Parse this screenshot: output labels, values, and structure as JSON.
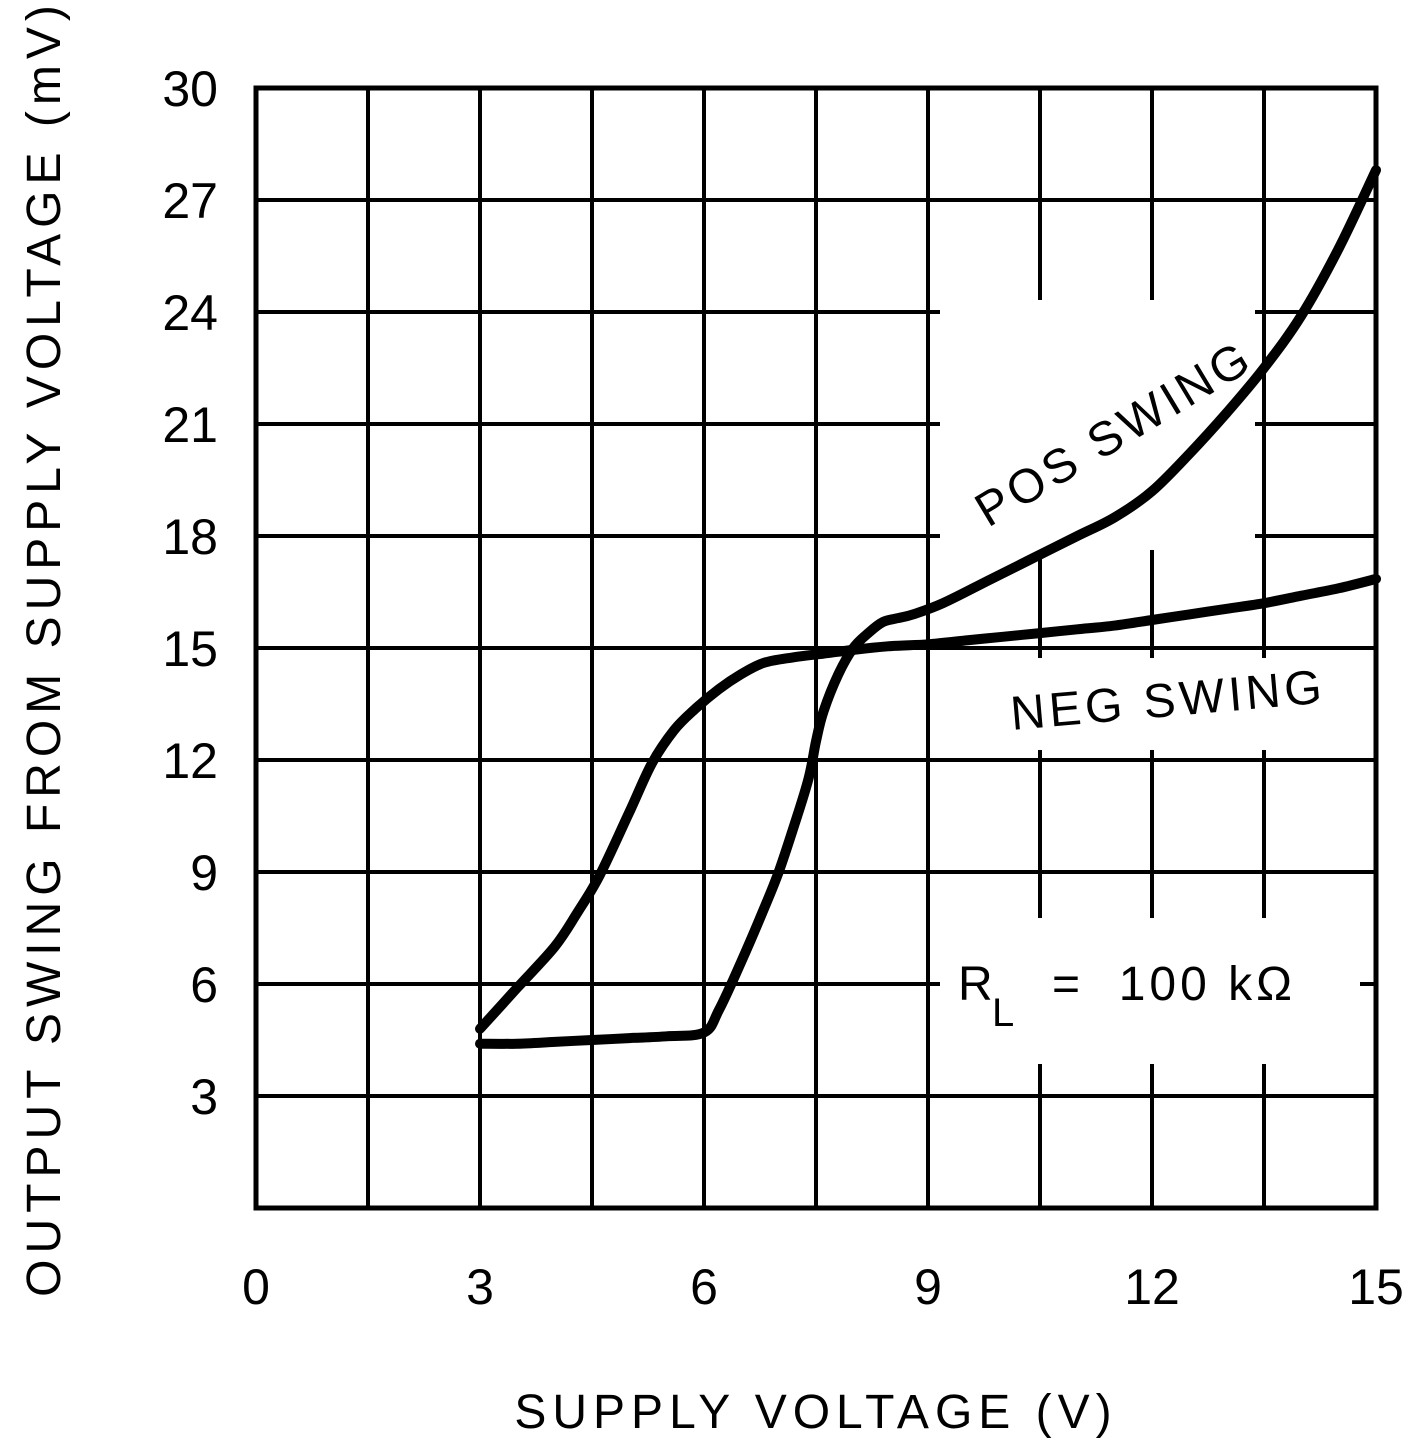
{
  "chart_data": {
    "type": "line",
    "title": "",
    "xlabel": "SUPPLY VOLTAGE (V)",
    "ylabel": "OUTPUT SWING FROM SUPPLY VOLTAGE (mV)",
    "xlim": [
      0,
      15
    ],
    "ylim": [
      0,
      30
    ],
    "x_ticks": [
      "0",
      "3",
      "6",
      "9",
      "12",
      "15"
    ],
    "y_ticks": [
      "3",
      "6",
      "9",
      "12",
      "15",
      "18",
      "21",
      "24",
      "27",
      "30"
    ],
    "grid": true,
    "series": [
      {
        "name": "POS SWING",
        "x": [
          3.0,
          3.5,
          4.0,
          4.5,
          5.0,
          5.5,
          6.0,
          6.2,
          6.5,
          6.8,
          7.0,
          7.2,
          7.4,
          7.5,
          7.6,
          7.8,
          8.0,
          8.2,
          8.4,
          8.6,
          8.8,
          9.2,
          9.8,
          10.4,
          11.0,
          11.5,
          12.0,
          12.5,
          13.0,
          13.5,
          14.0,
          14.5,
          15.0
        ],
        "y": [
          4.4,
          4.4,
          4.45,
          4.5,
          4.55,
          4.6,
          4.7,
          5.3,
          6.6,
          8.0,
          9.0,
          10.2,
          11.5,
          12.5,
          13.3,
          14.3,
          15.0,
          15.4,
          15.7,
          15.8,
          15.9,
          16.2,
          16.8,
          17.4,
          18.0,
          18.5,
          19.2,
          20.2,
          21.3,
          22.5,
          23.9,
          25.7,
          27.8
        ]
      },
      {
        "name": "NEG SWING",
        "x": [
          3.0,
          3.5,
          4.0,
          4.3,
          4.6,
          5.0,
          5.3,
          5.6,
          5.9,
          6.2,
          6.5,
          6.8,
          7.2,
          7.6,
          8.0,
          8.5,
          9.0,
          9.5,
          10.0,
          10.5,
          11.0,
          11.5,
          12.0,
          12.5,
          13.0,
          13.5,
          14.0,
          14.5,
          15.0
        ],
        "y": [
          4.8,
          5.9,
          7.0,
          7.9,
          8.9,
          10.6,
          11.9,
          12.8,
          13.4,
          13.9,
          14.3,
          14.6,
          14.75,
          14.85,
          14.95,
          15.05,
          15.1,
          15.2,
          15.3,
          15.4,
          15.5,
          15.6,
          15.75,
          15.9,
          16.05,
          16.2,
          16.4,
          16.6,
          16.85
        ]
      }
    ],
    "annotations": {
      "pos_label": "POS SWING",
      "neg_label": "NEG SWING",
      "rl_symbol": "R",
      "rl_subscript": "L",
      "rl_value": "=  100 kΩ"
    }
  }
}
